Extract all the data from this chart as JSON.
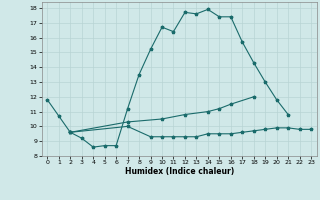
{
  "xlabel": "Humidex (Indice chaleur)",
  "bg_color": "#d0e8e8",
  "grid_color": "#b8d4d4",
  "line_color": "#1a6b6b",
  "xlim": [
    -0.5,
    23.5
  ],
  "ylim": [
    8,
    18.4
  ],
  "xticks": [
    0,
    1,
    2,
    3,
    4,
    5,
    6,
    7,
    8,
    9,
    10,
    11,
    12,
    13,
    14,
    15,
    16,
    17,
    18,
    19,
    20,
    21,
    22,
    23
  ],
  "yticks": [
    8,
    9,
    10,
    11,
    12,
    13,
    14,
    15,
    16,
    17,
    18
  ],
  "line1_x": [
    0,
    1,
    2,
    3,
    4,
    5,
    6,
    7,
    8,
    9,
    10,
    11,
    12,
    13,
    14,
    15,
    16,
    17,
    18,
    19,
    20,
    21
  ],
  "line1_y": [
    11.8,
    10.7,
    9.6,
    9.2,
    8.6,
    8.7,
    8.7,
    11.2,
    13.5,
    15.2,
    16.7,
    16.4,
    17.7,
    17.6,
    17.9,
    17.4,
    17.4,
    15.7,
    14.3,
    13.0,
    11.8,
    10.8
  ],
  "line2_x": [
    2,
    7,
    10,
    12,
    14,
    15,
    16,
    18
  ],
  "line2_y": [
    9.6,
    10.3,
    10.5,
    10.8,
    11.0,
    11.2,
    11.5,
    12.0
  ],
  "line3_x": [
    2,
    7,
    9,
    10,
    11,
    12,
    13,
    14,
    15,
    16,
    17,
    18,
    19,
    20,
    21,
    22,
    23
  ],
  "line3_y": [
    9.6,
    10.0,
    9.3,
    9.3,
    9.3,
    9.3,
    9.3,
    9.5,
    9.5,
    9.5,
    9.6,
    9.7,
    9.8,
    9.9,
    9.9,
    9.8,
    9.8
  ]
}
